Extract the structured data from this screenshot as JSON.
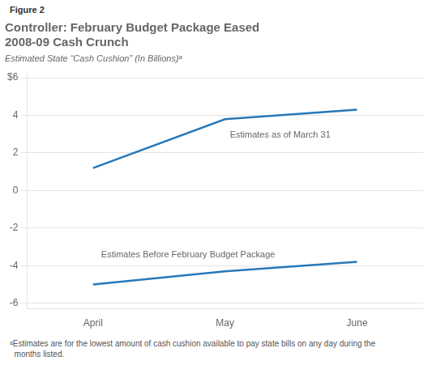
{
  "chart_data": {
    "type": "line",
    "figure_label": "Figure 2",
    "title": "Controller: February Budget Package Eased\n2008-09 Cash Crunch",
    "subtitle": "Estimated State “Cash Cushion” (In Billions)ᵃ",
    "footnote": "ᵃEstimates are for the lowest amount of cash cushion available to pay state bills on any day during the\n  months listed.",
    "categories": [
      "April",
      "May",
      "June"
    ],
    "series": [
      {
        "color": "#2878b8",
        "values": [
          1.2,
          3.8,
          4.3
        ]
      },
      {
        "color": "#2878b8",
        "values": [
          -5.0,
          -4.3,
          -3.8
        ]
      }
    ],
    "annotations": [
      "Estimates as of March 31",
      "Estimates Before February Budget Package"
    ],
    "ylim": [
      -6.3,
      6.3
    ],
    "yticks": [
      -6,
      -4,
      -2,
      0,
      2,
      4,
      {
        "value": 6,
        "label": "$6"
      }
    ],
    "grid": "y"
  }
}
